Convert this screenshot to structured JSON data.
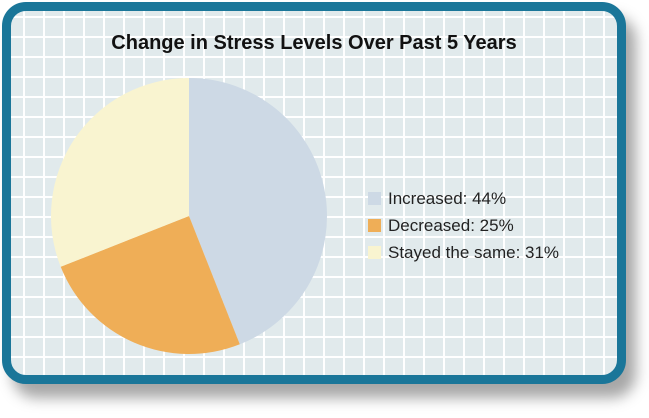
{
  "chart_data": {
    "type": "pie",
    "title": "Change in Stress Levels Over Past 5 Years",
    "categories": [
      "Increased",
      "Decreased",
      "Stayed the same"
    ],
    "values": [
      44,
      25,
      31
    ],
    "colors": [
      "#cdd9e5",
      "#efae57",
      "#f9f4d0"
    ],
    "legend_position": "right",
    "legend": [
      "Increased: 44%",
      "Decreased: 25%",
      "Stayed the same: 31%"
    ]
  }
}
